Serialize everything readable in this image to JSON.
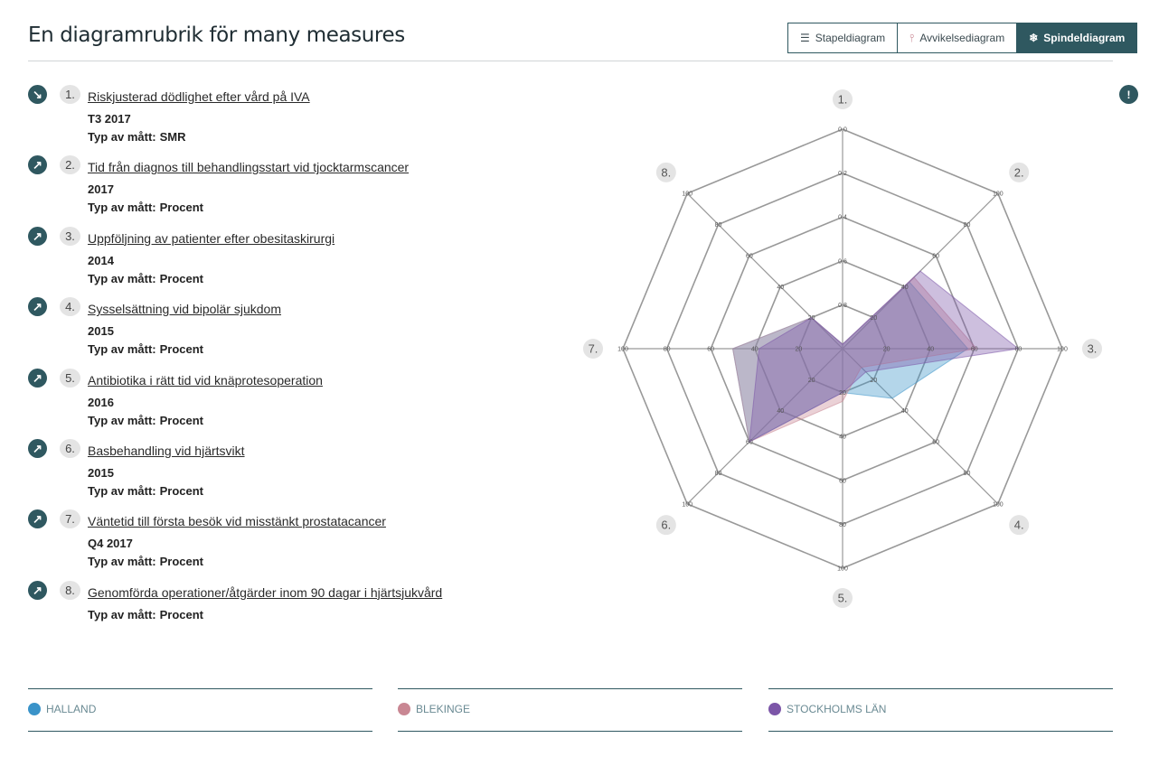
{
  "header": {
    "title": "En diagramrubrik för many measures",
    "views": [
      {
        "label": "Stapeldiagram",
        "icon": "bar-lines-icon",
        "active": false
      },
      {
        "label": "Avvikelsediagram",
        "icon": "deviation-icon",
        "active": false
      },
      {
        "label": "Spindeldiagram",
        "icon": "spider-icon",
        "active": true
      }
    ],
    "info_glyph": "!"
  },
  "measures": [
    {
      "number": "1.",
      "name": "Riskjusterad dödlighet efter vård på IVA",
      "period": "T3 2017",
      "type_label": "Typ av mått:",
      "type": "SMR",
      "trend": "down-right-arrow-icon",
      "trend_glyph": "↘"
    },
    {
      "number": "2.",
      "name": "Tid från diagnos till behandlingsstart vid tjocktarmscancer",
      "period": "2017",
      "type_label": "Typ av mått:",
      "type": "Procent",
      "trend": "up-right-arrow-icon",
      "trend_glyph": "↗"
    },
    {
      "number": "3.",
      "name": "Uppföljning av patienter efter obesitaskirurgi",
      "period": "2014",
      "type_label": "Typ av mått:",
      "type": "Procent",
      "trend": "up-right-arrow-icon",
      "trend_glyph": "↗"
    },
    {
      "number": "4.",
      "name": "Sysselsättning vid bipolär sjukdom",
      "period": "2015",
      "type_label": "Typ av mått:",
      "type": "Procent",
      "trend": "up-right-arrow-icon",
      "trend_glyph": "↗"
    },
    {
      "number": "5.",
      "name": "Antibiotika i rätt tid vid knäprotesoperation",
      "period": "2016",
      "type_label": "Typ av mått:",
      "type": "Procent",
      "trend": "up-right-arrow-icon",
      "trend_glyph": "↗"
    },
    {
      "number": "6.",
      "name": "Basbehandling vid hjärtsvikt",
      "period": "2015",
      "type_label": "Typ av mått:",
      "type": "Procent",
      "trend": "up-right-arrow-icon",
      "trend_glyph": "↗"
    },
    {
      "number": "7.",
      "name": "Väntetid till första besök vid misstänkt prostatacancer",
      "period": "Q4 2017",
      "type_label": "Typ av mått:",
      "type": "Procent",
      "trend": "up-right-arrow-icon",
      "trend_glyph": "↗"
    },
    {
      "number": "8.",
      "name": "Genomförda operationer/åtgärder inom 90 dagar i hjärtsjukvård",
      "period": "",
      "type_label": "Typ av mått:",
      "type": "Procent",
      "trend": "up-right-arrow-icon",
      "trend_glyph": "↗"
    }
  ],
  "chart_data": {
    "type": "radar",
    "axes": [
      "1.",
      "2.",
      "3.",
      "4.",
      "5.",
      "6.",
      "7.",
      "8."
    ],
    "axis_ticks": [
      [
        "0.0",
        "0.2",
        "0.4",
        "0.6",
        "0.8",
        ""
      ],
      [
        "100",
        "80",
        "60",
        "40",
        "20",
        ""
      ],
      [
        "100",
        "80",
        "60",
        "40",
        "20",
        ""
      ],
      [
        "100",
        "80",
        "60",
        "40",
        "20",
        ""
      ],
      [
        "100",
        "80",
        "60",
        "40",
        "20",
        ""
      ],
      [
        "100",
        "80",
        "60",
        "40",
        "20",
        ""
      ],
      [
        "100",
        "80",
        "60",
        "40",
        "20",
        ""
      ],
      [
        "100",
        "80",
        "60",
        "40",
        "20",
        ""
      ]
    ],
    "axis_ranges": [
      [
        1.0,
        0.0
      ],
      [
        0,
        100
      ],
      [
        0,
        100
      ],
      [
        0,
        100
      ],
      [
        0,
        100
      ],
      [
        0,
        100
      ],
      [
        0,
        100
      ],
      [
        0,
        100
      ]
    ],
    "series": [
      {
        "name": "HALLAND",
        "color": "#3a93c9",
        "values": [
          0.98,
          43,
          57,
          32,
          20,
          60,
          50,
          20
        ]
      },
      {
        "name": "BLEKINGE",
        "color": "#c98793",
        "values": [
          0.98,
          46,
          61,
          12,
          24,
          60,
          50,
          20
        ]
      },
      {
        "name": "STOCKHOLMS LÄN",
        "color": "#7c56a8",
        "values": [
          0.98,
          50,
          80,
          15,
          20,
          60,
          38,
          20
        ]
      }
    ],
    "legend_position": "bottom",
    "grid": true
  }
}
